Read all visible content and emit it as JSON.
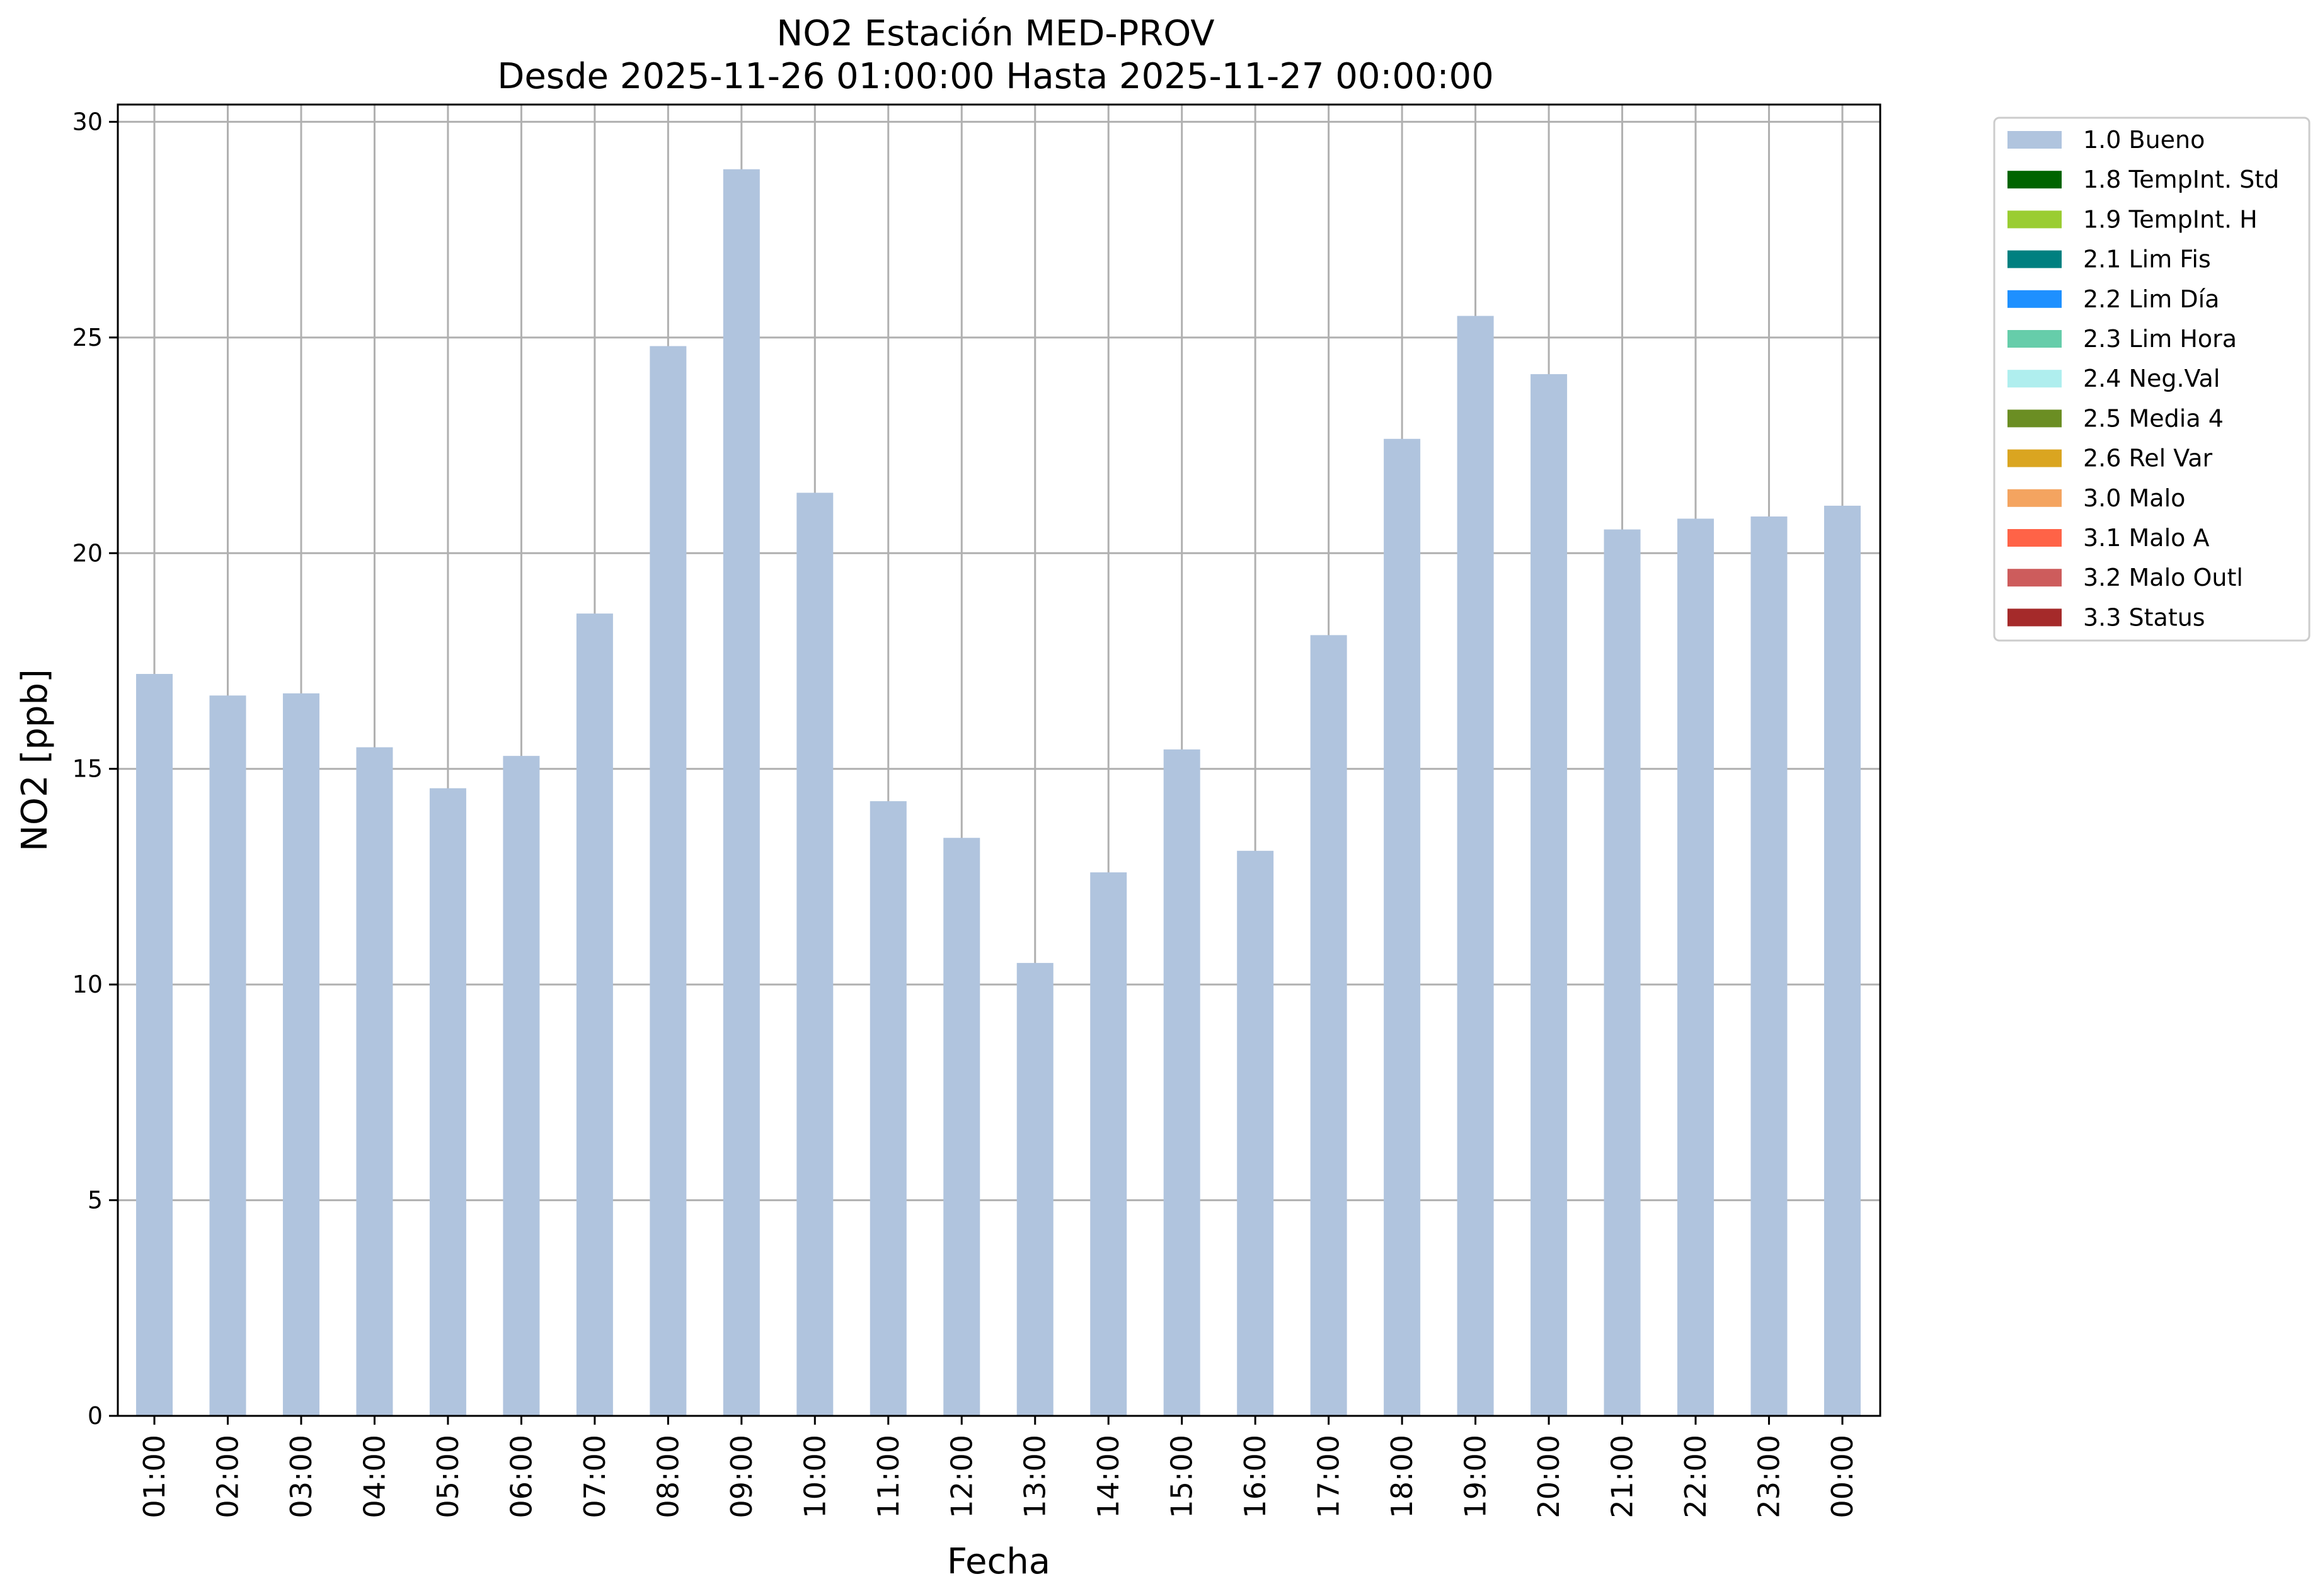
{
  "chart_data": {
    "type": "bar",
    "title": "NO2 Estación MED-PROV",
    "subtitle": "Desde 2025-11-26 01:00:00 Hasta 2025-11-27 00:00:00",
    "xlabel": "Fecha",
    "ylabel": "NO2 [ppb]",
    "ylim": [
      0,
      30.4
    ],
    "yticks": [
      "0",
      "5",
      "10",
      "15",
      "20",
      "25",
      "30"
    ],
    "grid": true,
    "legend_position": "outside-top-right",
    "categories": [
      "01:00",
      "02:00",
      "03:00",
      "04:00",
      "05:00",
      "06:00",
      "07:00",
      "08:00",
      "09:00",
      "10:00",
      "11:00",
      "12:00",
      "13:00",
      "14:00",
      "15:00",
      "16:00",
      "17:00",
      "18:00",
      "19:00",
      "20:00",
      "21:00",
      "22:00",
      "23:00",
      "00:00"
    ],
    "series": [
      {
        "name": "1.0 Bueno",
        "color": "#b0c4de",
        "values": [
          17.2,
          16.7,
          16.75,
          15.5,
          14.55,
          15.3,
          18.6,
          24.8,
          28.9,
          21.4,
          14.25,
          13.4,
          10.5,
          12.6,
          15.45,
          13.1,
          18.1,
          22.65,
          25.5,
          24.15,
          20.55,
          20.8,
          20.85,
          21.1
        ]
      }
    ],
    "legend": [
      {
        "label": "1.0 Bueno",
        "color": "#b0c4de"
      },
      {
        "label": "1.8 TempInt. Std",
        "color": "#006400"
      },
      {
        "label": "1.9 TempInt. H",
        "color": "#9acd32"
      },
      {
        "label": "2.1 Lim Fis",
        "color": "#008080"
      },
      {
        "label": "2.2 Lim Día",
        "color": "#1e90ff"
      },
      {
        "label": "2.3 Lim Hora",
        "color": "#66cdaa"
      },
      {
        "label": "2.4 Neg.Val",
        "color": "#afeeee"
      },
      {
        "label": "2.5 Media 4",
        "color": "#6b8e23"
      },
      {
        "label": "2.6 Rel Var",
        "color": "#daa520"
      },
      {
        "label": "3.0 Malo",
        "color": "#f4a460"
      },
      {
        "label": "3.1 Malo A",
        "color": "#ff6347"
      },
      {
        "label": "3.2 Malo Outl",
        "color": "#cd5c5c"
      },
      {
        "label": "3.3 Status",
        "color": "#a52a2a"
      }
    ]
  }
}
